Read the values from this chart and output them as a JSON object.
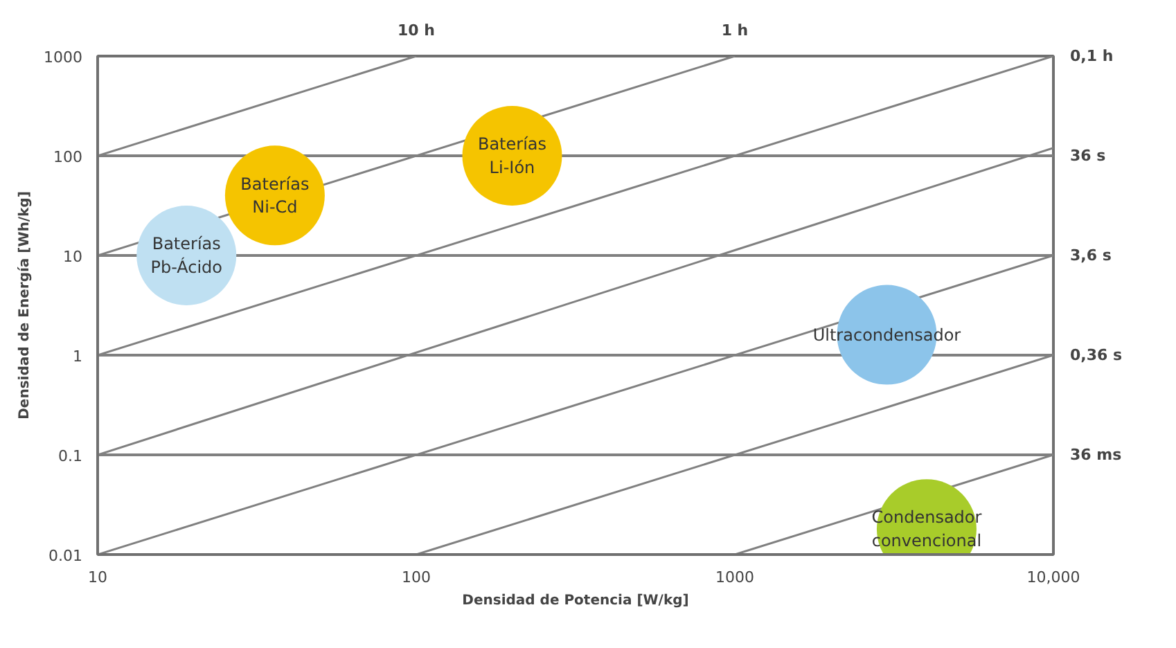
{
  "chart_data": {
    "type": "scatter",
    "xlabel": "Densidad de Potencia [W/kg]",
    "ylabel": "Densidad de Energía [Wh/kg]",
    "log": "xy",
    "grid": "y",
    "marker": "none",
    "line_style": "solid",
    "xlim": [
      10,
      10000
    ],
    "ylim": [
      0.01,
      1000
    ],
    "xticks": [
      10,
      100,
      1000,
      {
        "value": 10000,
        "label": "10,000"
      }
    ],
    "yticks": [
      0.01,
      0.1,
      1,
      10,
      100,
      1000
    ],
    "series": [
      {
        "type": "line",
        "color": "#808080",
        "x": [
          10,
          100
        ],
        "values": [
          100,
          1000
        ]
      },
      {
        "type": "line",
        "color": "#808080",
        "x": [
          10,
          1000
        ],
        "values": [
          10,
          1000
        ]
      },
      {
        "type": "line",
        "color": "#808080",
        "x": [
          10,
          10000
        ],
        "values": [
          1,
          1000
        ]
      },
      {
        "type": "line",
        "color": "#808080",
        "x": [
          10,
          10000
        ],
        "values": [
          0.1,
          120
        ]
      },
      {
        "type": "line",
        "color": "#808080",
        "x": [
          10,
          10000
        ],
        "values": [
          0.01,
          10
        ]
      },
      {
        "type": "line",
        "color": "#808080",
        "x": [
          100,
          10000
        ],
        "values": [
          0.01,
          1
        ]
      },
      {
        "type": "line",
        "color": "#808080",
        "x": [
          1000,
          10000
        ],
        "values": [
          0.01,
          0.1
        ]
      },
      {
        "name": "Baterías\nPb-Ácido",
        "color": "#bfe0f2",
        "marker": "circle",
        "x": [
          19
        ],
        "values": [
          10
        ]
      },
      {
        "name": "Baterías\nNi-Cd",
        "color": "#f5c400",
        "marker": "circle",
        "x": [
          36
        ],
        "values": [
          40
        ]
      },
      {
        "name": "Baterías\nLi-Ión",
        "color": "#f5c400",
        "marker": "circle",
        "x": [
          200
        ],
        "values": [
          100
        ]
      },
      {
        "name": "Ultracondensador",
        "color": "#8cc4ea",
        "marker": "circle",
        "x": [
          3000
        ],
        "values": [
          1.6
        ]
      },
      {
        "name": "Condensador\nconvencional",
        "color": "#a8cc2a",
        "marker": "circle",
        "x": [
          4000
        ],
        "values": [
          0.018
        ]
      }
    ],
    "annotations": [
      {
        "text": "10 h",
        "x": 100,
        "y": 1000
      },
      {
        "text": "1 h",
        "x": 1000,
        "y": 1000
      },
      {
        "text": "0,1 h",
        "x": 10000,
        "y": 1000
      },
      {
        "text": "36 s",
        "x": 10000,
        "y": 100
      },
      {
        "text": "3,6 s",
        "x": 10000,
        "y": 10
      },
      {
        "text": "0,36 s",
        "x": 10000,
        "y": 1
      },
      {
        "text": "36 ms",
        "x": 10000,
        "y": 0.1
      }
    ]
  }
}
